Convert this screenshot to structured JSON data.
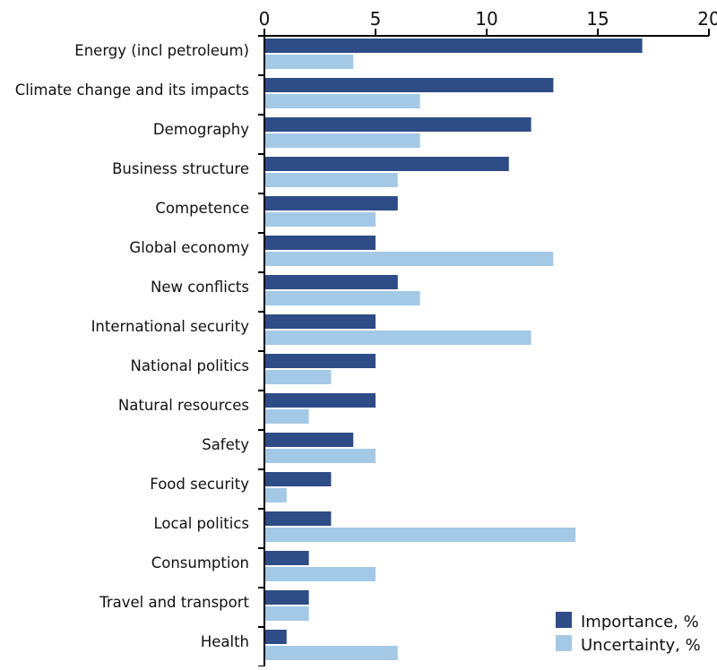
{
  "chart_data": {
    "type": "bar",
    "orientation": "horizontal",
    "title": "",
    "xlabel": "",
    "ylabel": "",
    "xlim": [
      0,
      20
    ],
    "x_ticks": [
      0,
      5,
      10,
      15,
      20
    ],
    "grid": false,
    "legend_position": "bottom-right",
    "categories": [
      "Energy (incl petroleum)",
      "Climate change and its impacts",
      "Demography",
      "Business structure",
      "Competence",
      "Global economy",
      "New conflicts",
      "International security",
      "National politics",
      "Natural resources",
      "Safety",
      "Food security",
      "Local  politics",
      "Consumption",
      "Travel and transport",
      "Health"
    ],
    "series": [
      {
        "name": "Importance, %",
        "color": "#2e4c85",
        "values": [
          17,
          13,
          12,
          11,
          6,
          5,
          6,
          5,
          5,
          5,
          4,
          3,
          3,
          2,
          2,
          1
        ]
      },
      {
        "name": "Uncertainty, %",
        "color": "#a3c9e6",
        "values": [
          4,
          7,
          7,
          6,
          5,
          13,
          7,
          12,
          3,
          2,
          5,
          1,
          14,
          5,
          2,
          6
        ]
      }
    ]
  }
}
